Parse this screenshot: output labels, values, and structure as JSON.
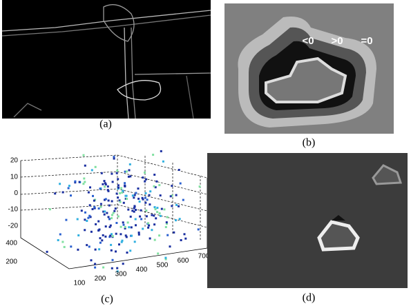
{
  "panels": [
    {
      "caption": "(a)"
    },
    {
      "caption": "(b)",
      "annotations": [
        "<0",
        ">0",
        "=0"
      ]
    },
    {
      "caption": "(c)",
      "zticks": [
        20,
        10,
        0,
        -10,
        -20
      ],
      "yticks": [
        400,
        200
      ],
      "xticks": [
        100,
        200,
        300,
        400,
        500,
        600,
        700
      ]
    },
    {
      "caption": "(d)"
    }
  ]
}
